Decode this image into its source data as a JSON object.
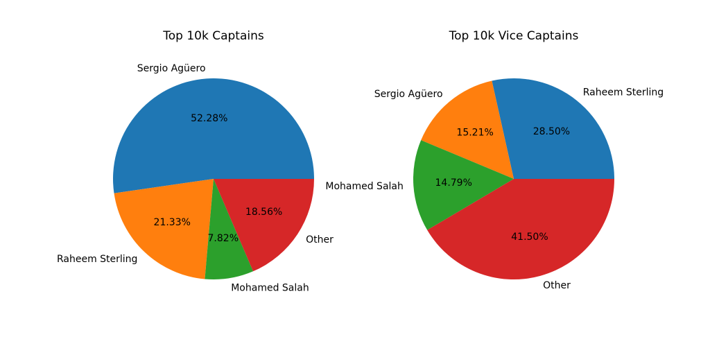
{
  "chart_data": [
    {
      "type": "pie",
      "title": "Top 10k Captains",
      "categories": [
        "Sergio Agüero",
        "Raheem Sterling",
        "Mohamed Salah",
        "Other"
      ],
      "values": [
        52.28,
        21.33,
        7.82,
        18.56
      ],
      "value_labels": [
        "52.28%",
        "21.33%",
        "7.82%",
        "18.56%"
      ],
      "colors": [
        "#1f77b4",
        "#ff7f0e",
        "#2ca02c",
        "#d62728"
      ]
    },
    {
      "type": "pie",
      "title": "Top 10k Vice Captains",
      "categories": [
        "Raheem Sterling",
        "Sergio Agüero",
        "Mohamed Salah",
        "Other"
      ],
      "values": [
        28.5,
        15.21,
        14.79,
        41.5
      ],
      "value_labels": [
        "28.50%",
        "15.21%",
        "14.79%",
        "41.50%"
      ],
      "colors": [
        "#1f77b4",
        "#ff7f0e",
        "#2ca02c",
        "#d62728"
      ]
    }
  ]
}
